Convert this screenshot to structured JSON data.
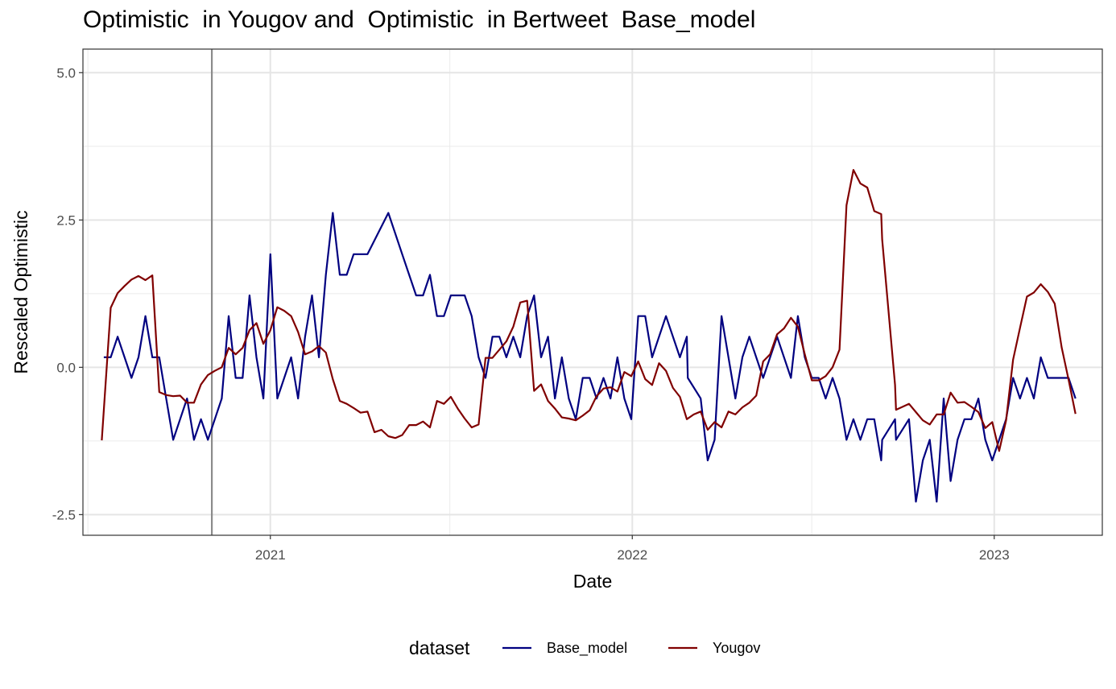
{
  "chart_data": {
    "type": "line",
    "title": "Optimistic  in Yougov and  Optimistic  in Bertweet  Base_model",
    "xlabel": "Date",
    "ylabel": "Rescaled  Optimistic",
    "x_ticks": [
      "2021",
      "2022",
      "2023"
    ],
    "y_ticks": [
      "-2.5",
      "0.0",
      "2.5",
      "5.0"
    ],
    "xlim": [
      "2020-06-26",
      "2023-04-20"
    ],
    "ylim": [
      -2.85,
      5.4
    ],
    "grid": true,
    "vline": "2020-11-03",
    "legend": {
      "title": "dataset",
      "position": "bottom"
    },
    "series": [
      {
        "name": "Base_model",
        "color": "#000080",
        "points": [
          [
            "2020-07-17",
            0.17
          ],
          [
            "2020-07-24",
            0.17
          ],
          [
            "2020-07-31",
            0.52
          ],
          [
            "2020-08-07",
            0.17
          ],
          [
            "2020-08-14",
            -0.18
          ],
          [
            "2020-08-21",
            0.17
          ],
          [
            "2020-08-28",
            0.87
          ],
          [
            "2020-09-04",
            0.17
          ],
          [
            "2020-09-11",
            0.17
          ],
          [
            "2020-09-18",
            -0.53
          ],
          [
            "2020-09-25",
            -1.23
          ],
          [
            "2020-10-02",
            -0.88
          ],
          [
            "2020-10-09",
            -0.53
          ],
          [
            "2020-10-16",
            -1.23
          ],
          [
            "2020-10-23",
            -0.88
          ],
          [
            "2020-10-30",
            -1.23
          ],
          [
            "2020-11-06",
            -0.88
          ],
          [
            "2020-11-13",
            -0.53
          ],
          [
            "2020-11-20",
            0.87
          ],
          [
            "2020-11-27",
            -0.18
          ],
          [
            "2020-12-04",
            -0.18
          ],
          [
            "2020-12-11",
            1.22
          ],
          [
            "2020-12-18",
            0.17
          ],
          [
            "2020-12-25",
            -0.53
          ],
          [
            "2021-01-01",
            1.92
          ],
          [
            "2021-01-08",
            -0.53
          ],
          [
            "2021-01-15",
            -0.18
          ],
          [
            "2021-01-22",
            0.17
          ],
          [
            "2021-01-29",
            -0.53
          ],
          [
            "2021-02-05",
            0.52
          ],
          [
            "2021-02-12",
            1.22
          ],
          [
            "2021-02-19",
            0.17
          ],
          [
            "2021-02-26",
            1.57
          ],
          [
            "2021-03-05",
            2.62
          ],
          [
            "2021-03-12",
            1.57
          ],
          [
            "2021-03-19",
            1.57
          ],
          [
            "2021-03-26",
            1.92
          ],
          [
            "2021-04-02",
            1.92
          ],
          [
            "2021-04-09",
            1.92
          ],
          [
            "2021-04-30",
            2.62
          ],
          [
            "2021-05-14",
            1.92
          ],
          [
            "2021-05-28",
            1.22
          ],
          [
            "2021-06-04",
            1.22
          ],
          [
            "2021-06-11",
            1.57
          ],
          [
            "2021-06-18",
            0.87
          ],
          [
            "2021-06-25",
            0.87
          ],
          [
            "2021-07-02",
            1.22
          ],
          [
            "2021-07-09",
            1.22
          ],
          [
            "2021-07-16",
            1.22
          ],
          [
            "2021-07-23",
            0.87
          ],
          [
            "2021-07-30",
            0.17
          ],
          [
            "2021-08-06",
            -0.18
          ],
          [
            "2021-08-13",
            0.52
          ],
          [
            "2021-08-20",
            0.52
          ],
          [
            "2021-08-27",
            0.17
          ],
          [
            "2021-09-03",
            0.52
          ],
          [
            "2021-09-10",
            0.17
          ],
          [
            "2021-09-17",
            0.87
          ],
          [
            "2021-09-24",
            1.22
          ],
          [
            "2021-10-01",
            0.17
          ],
          [
            "2021-10-08",
            0.52
          ],
          [
            "2021-10-15",
            -0.53
          ],
          [
            "2021-10-22",
            0.17
          ],
          [
            "2021-10-29",
            -0.53
          ],
          [
            "2021-11-05",
            -0.88
          ],
          [
            "2021-11-12",
            -0.18
          ],
          [
            "2021-11-19",
            -0.18
          ],
          [
            "2021-11-26",
            -0.53
          ],
          [
            "2021-12-03",
            -0.18
          ],
          [
            "2021-12-10",
            -0.53
          ],
          [
            "2021-12-17",
            0.17
          ],
          [
            "2021-12-24",
            -0.53
          ],
          [
            "2021-12-31",
            -0.88
          ],
          [
            "2022-01-07",
            0.87
          ],
          [
            "2022-01-14",
            0.87
          ],
          [
            "2022-01-21",
            0.17
          ],
          [
            "2022-02-04",
            0.87
          ],
          [
            "2022-02-18",
            0.17
          ],
          [
            "2022-02-25",
            0.52
          ],
          [
            "2022-02-26",
            -0.18
          ],
          [
            "2022-03-11",
            -0.53
          ],
          [
            "2022-03-18",
            -1.58
          ],
          [
            "2022-03-25",
            -1.23
          ],
          [
            "2022-04-01",
            0.87
          ],
          [
            "2022-04-15",
            -0.53
          ],
          [
            "2022-04-22",
            0.17
          ],
          [
            "2022-04-29",
            0.52
          ],
          [
            "2022-05-13",
            -0.18
          ],
          [
            "2022-05-27",
            0.52
          ],
          [
            "2022-06-10",
            -0.18
          ],
          [
            "2022-06-17",
            0.87
          ],
          [
            "2022-06-24",
            0.17
          ],
          [
            "2022-07-01",
            -0.18
          ],
          [
            "2022-07-08",
            -0.18
          ],
          [
            "2022-07-15",
            -0.53
          ],
          [
            "2022-07-22",
            -0.18
          ],
          [
            "2022-07-29",
            -0.53
          ],
          [
            "2022-08-05",
            -1.23
          ],
          [
            "2022-08-12",
            -0.88
          ],
          [
            "2022-08-19",
            -1.23
          ],
          [
            "2022-08-26",
            -0.88
          ],
          [
            "2022-09-02",
            -0.88
          ],
          [
            "2022-09-09",
            -1.58
          ],
          [
            "2022-09-10",
            -1.23
          ],
          [
            "2022-09-23",
            -0.88
          ],
          [
            "2022-09-24",
            -1.23
          ],
          [
            "2022-10-07",
            -0.88
          ],
          [
            "2022-10-14",
            -2.28
          ],
          [
            "2022-10-21",
            -1.58
          ],
          [
            "2022-10-28",
            -1.23
          ],
          [
            "2022-11-04",
            -2.28
          ],
          [
            "2022-11-11",
            -0.53
          ],
          [
            "2022-11-18",
            -1.93
          ],
          [
            "2022-11-25",
            -1.23
          ],
          [
            "2022-12-02",
            -0.88
          ],
          [
            "2022-12-09",
            -0.88
          ],
          [
            "2022-12-16",
            -0.53
          ],
          [
            "2022-12-23",
            -1.23
          ],
          [
            "2022-12-30",
            -1.58
          ],
          [
            "2023-01-06",
            -1.23
          ],
          [
            "2023-01-13",
            -0.88
          ],
          [
            "2023-01-20",
            -0.18
          ],
          [
            "2023-01-27",
            -0.53
          ],
          [
            "2023-02-03",
            -0.18
          ],
          [
            "2023-02-10",
            -0.53
          ],
          [
            "2023-02-17",
            0.17
          ],
          [
            "2023-02-24",
            -0.18
          ],
          [
            "2023-03-03",
            -0.18
          ],
          [
            "2023-03-10",
            -0.18
          ],
          [
            "2023-03-17",
            -0.18
          ],
          [
            "2023-03-24",
            -0.53
          ]
        ]
      },
      {
        "name": "Yougov",
        "color": "#800000",
        "points": [
          [
            "2020-07-15",
            -1.24
          ],
          [
            "2020-07-24",
            1.01
          ],
          [
            "2020-07-31",
            1.26
          ],
          [
            "2020-08-07",
            1.38
          ],
          [
            "2020-08-14",
            1.49
          ],
          [
            "2020-08-21",
            1.55
          ],
          [
            "2020-08-28",
            1.48
          ],
          [
            "2020-09-04",
            1.56
          ],
          [
            "2020-09-11",
            -0.42
          ],
          [
            "2020-09-18",
            -0.47
          ],
          [
            "2020-09-25",
            -0.49
          ],
          [
            "2020-10-02",
            -0.48
          ],
          [
            "2020-10-09",
            -0.6
          ],
          [
            "2020-10-16",
            -0.6
          ],
          [
            "2020-10-23",
            -0.29
          ],
          [
            "2020-10-30",
            -0.13
          ],
          [
            "2020-11-06",
            -0.06
          ],
          [
            "2020-11-13",
            0.0
          ],
          [
            "2020-11-20",
            0.33
          ],
          [
            "2020-11-27",
            0.22
          ],
          [
            "2020-12-04",
            0.33
          ],
          [
            "2020-12-11",
            0.63
          ],
          [
            "2020-12-18",
            0.75
          ],
          [
            "2020-12-25",
            0.4
          ],
          [
            "2021-01-01",
            0.63
          ],
          [
            "2021-01-08",
            1.02
          ],
          [
            "2021-01-15",
            0.96
          ],
          [
            "2021-01-22",
            0.87
          ],
          [
            "2021-01-29",
            0.6
          ],
          [
            "2021-02-05",
            0.22
          ],
          [
            "2021-02-12",
            0.27
          ],
          [
            "2021-02-19",
            0.36
          ],
          [
            "2021-02-26",
            0.25
          ],
          [
            "2021-03-05",
            -0.2
          ],
          [
            "2021-03-12",
            -0.57
          ],
          [
            "2021-03-19",
            -0.62
          ],
          [
            "2021-03-26",
            -0.69
          ],
          [
            "2021-04-02",
            -0.77
          ],
          [
            "2021-04-09",
            -0.75
          ],
          [
            "2021-04-16",
            -1.1
          ],
          [
            "2021-04-23",
            -1.06
          ],
          [
            "2021-04-30",
            -1.17
          ],
          [
            "2021-05-07",
            -1.2
          ],
          [
            "2021-05-14",
            -1.15
          ],
          [
            "2021-05-21",
            -0.98
          ],
          [
            "2021-05-28",
            -0.98
          ],
          [
            "2021-06-04",
            -0.92
          ],
          [
            "2021-06-11",
            -1.02
          ],
          [
            "2021-06-18",
            -0.57
          ],
          [
            "2021-06-25",
            -0.62
          ],
          [
            "2021-07-02",
            -0.5
          ],
          [
            "2021-07-09",
            -0.7
          ],
          [
            "2021-07-16",
            -0.87
          ],
          [
            "2021-07-23",
            -1.02
          ],
          [
            "2021-07-30",
            -0.97
          ],
          [
            "2021-08-06",
            0.16
          ],
          [
            "2021-08-13",
            0.16
          ],
          [
            "2021-08-20",
            0.3
          ],
          [
            "2021-08-27",
            0.44
          ],
          [
            "2021-09-03",
            0.69
          ],
          [
            "2021-09-10",
            1.1
          ],
          [
            "2021-09-17",
            1.13
          ],
          [
            "2021-09-24",
            -0.4
          ],
          [
            "2021-10-01",
            -0.29
          ],
          [
            "2021-10-08",
            -0.57
          ],
          [
            "2021-10-15",
            -0.7
          ],
          [
            "2021-10-22",
            -0.85
          ],
          [
            "2021-10-29",
            -0.87
          ],
          [
            "2021-11-05",
            -0.9
          ],
          [
            "2021-11-12",
            -0.82
          ],
          [
            "2021-11-19",
            -0.73
          ],
          [
            "2021-11-26",
            -0.49
          ],
          [
            "2021-12-03",
            -0.36
          ],
          [
            "2021-12-10",
            -0.34
          ],
          [
            "2021-12-17",
            -0.41
          ],
          [
            "2021-12-24",
            -0.08
          ],
          [
            "2021-12-31",
            -0.15
          ],
          [
            "2022-01-07",
            0.1
          ],
          [
            "2022-01-14",
            -0.2
          ],
          [
            "2022-01-21",
            -0.3
          ],
          [
            "2022-01-28",
            0.07
          ],
          [
            "2022-02-04",
            -0.06
          ],
          [
            "2022-02-11",
            -0.35
          ],
          [
            "2022-02-18",
            -0.5
          ],
          [
            "2022-02-25",
            -0.88
          ],
          [
            "2022-03-04",
            -0.8
          ],
          [
            "2022-03-11",
            -0.75
          ],
          [
            "2022-03-18",
            -1.06
          ],
          [
            "2022-03-25",
            -0.93
          ],
          [
            "2022-04-01",
            -1.02
          ],
          [
            "2022-04-08",
            -0.75
          ],
          [
            "2022-04-15",
            -0.8
          ],
          [
            "2022-04-22",
            -0.68
          ],
          [
            "2022-04-29",
            -0.6
          ],
          [
            "2022-05-06",
            -0.48
          ],
          [
            "2022-05-13",
            0.1
          ],
          [
            "2022-05-20",
            0.22
          ],
          [
            "2022-05-27",
            0.56
          ],
          [
            "2022-06-03",
            0.66
          ],
          [
            "2022-06-10",
            0.84
          ],
          [
            "2022-06-17",
            0.69
          ],
          [
            "2022-06-24",
            0.22
          ],
          [
            "2022-07-01",
            -0.22
          ],
          [
            "2022-07-08",
            -0.22
          ],
          [
            "2022-07-15",
            -0.15
          ],
          [
            "2022-07-22",
            0.0
          ],
          [
            "2022-07-29",
            0.3
          ],
          [
            "2022-08-05",
            2.75
          ],
          [
            "2022-08-12",
            3.35
          ],
          [
            "2022-08-19",
            3.12
          ],
          [
            "2022-08-26",
            3.05
          ],
          [
            "2022-09-02",
            2.65
          ],
          [
            "2022-09-09",
            2.6
          ],
          [
            "2022-09-10",
            2.17
          ],
          [
            "2022-09-23",
            -0.3
          ],
          [
            "2022-09-24",
            -0.72
          ],
          [
            "2022-10-07",
            -0.62
          ],
          [
            "2022-10-14",
            -0.76
          ],
          [
            "2022-10-21",
            -0.9
          ],
          [
            "2022-10-28",
            -0.97
          ],
          [
            "2022-11-04",
            -0.8
          ],
          [
            "2022-11-11",
            -0.8
          ],
          [
            "2022-11-18",
            -0.43
          ],
          [
            "2022-11-25",
            -0.6
          ],
          [
            "2022-12-02",
            -0.59
          ],
          [
            "2022-12-09",
            -0.67
          ],
          [
            "2022-12-16",
            -0.76
          ],
          [
            "2022-12-23",
            -1.03
          ],
          [
            "2022-12-30",
            -0.93
          ],
          [
            "2023-01-06",
            -1.42
          ],
          [
            "2023-01-13",
            -0.9
          ],
          [
            "2023-01-20",
            0.13
          ],
          [
            "2023-01-27",
            0.67
          ],
          [
            "2023-02-03",
            1.2
          ],
          [
            "2023-02-10",
            1.27
          ],
          [
            "2023-02-17",
            1.41
          ],
          [
            "2023-02-24",
            1.28
          ],
          [
            "2023-03-03",
            1.08
          ],
          [
            "2023-03-10",
            0.34
          ],
          [
            "2023-03-17",
            -0.21
          ],
          [
            "2023-03-24",
            -0.79
          ]
        ]
      }
    ]
  }
}
